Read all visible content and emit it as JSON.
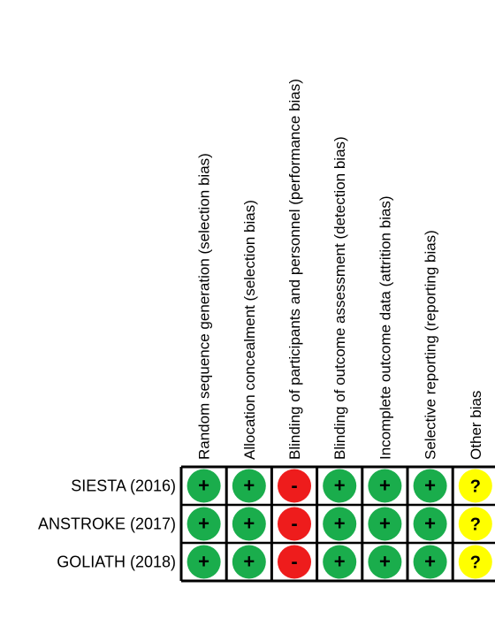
{
  "chart_data": {
    "type": "table",
    "domains": [
      "Random sequence generation (selection bias)",
      "Allocation concealment (selection bias)",
      "Blinding of participants and personnel (performance bias)",
      "Blinding of outcome assessment (detection bias)",
      "Incomplete outcome data (attrition bias)",
      "Selective reporting (reporting bias)",
      "Other bias"
    ],
    "studies": [
      {
        "label": "SIESTA (2016)",
        "judgements": [
          "+",
          "+",
          "-",
          "+",
          "+",
          "+",
          "?"
        ]
      },
      {
        "label": "ANSTROKE (2017)",
        "judgements": [
          "+",
          "+",
          "-",
          "+",
          "+",
          "+",
          "?"
        ]
      },
      {
        "label": "GOLIATH (2018)",
        "judgements": [
          "+",
          "+",
          "-",
          "+",
          "+",
          "+",
          "?"
        ]
      }
    ],
    "colors": {
      "low_risk": "#1aad4c",
      "high_risk": "#ee1c1c",
      "unclear": "#ffff00",
      "grid": "#000000",
      "text": "#000000"
    }
  }
}
